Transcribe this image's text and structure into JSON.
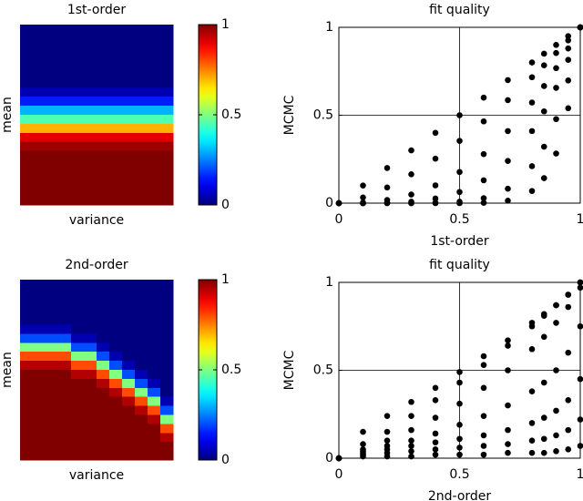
{
  "chart_data": [
    {
      "type": "heatmap",
      "title": "1st-order",
      "xlabel": "variance",
      "ylabel": "mean",
      "colormap": "jet",
      "values": [
        [
          0
        ],
        [
          0
        ],
        [
          0
        ],
        [
          0
        ],
        [
          0
        ],
        [
          0
        ],
        [
          0
        ],
        [
          0.05
        ],
        [
          0.15
        ],
        [
          0.3
        ],
        [
          0.45
        ],
        [
          0.7
        ],
        [
          0.9
        ],
        [
          0.97
        ],
        [
          1
        ],
        [
          1
        ],
        [
          1
        ],
        [
          1
        ],
        [
          1
        ],
        [
          1
        ]
      ],
      "colorbar": {
        "clim": [
          0,
          1
        ],
        "ticks": [
          0,
          0.5,
          1
        ]
      }
    },
    {
      "type": "scatter",
      "title": "fit quality",
      "xlabel": "1st-order",
      "ylabel": "MCMC",
      "xlim": [
        0,
        1
      ],
      "ylim": [
        0,
        1
      ],
      "xticks": [
        0,
        0.5,
        1
      ],
      "yticks": [
        0,
        0.5,
        1
      ],
      "grid": true,
      "series": [
        {
          "color": "#000000",
          "x": [
            0,
            0.1,
            0.2,
            0.3,
            0.4,
            0.5,
            0.6,
            0.7,
            0.8,
            0.85,
            0.9,
            0.95,
            1,
            0,
            0.1,
            0.2,
            0.3,
            0.4,
            0.5,
            0.6,
            0.7,
            0.8,
            0.85,
            0.9,
            0.95,
            1,
            0,
            0.1,
            0.2,
            0.3,
            0.4,
            0.5,
            0.6,
            0.7,
            0.8,
            0.85,
            0.9,
            0.95,
            1,
            0,
            0.1,
            0.2,
            0.3,
            0.4,
            0.5,
            0.6,
            0.7,
            0.8,
            0.85,
            0.9,
            0.95,
            1,
            0,
            0.1,
            0.2,
            0.3,
            0.4,
            0.5,
            0.6,
            0.7,
            0.8,
            0.85,
            0.9,
            0.95,
            1,
            0,
            0.1,
            0.2,
            0.3,
            0.4,
            0.5,
            0.6,
            0.7,
            0.8,
            0.85,
            0.9,
            0.95,
            1
          ],
          "y": [
            0,
            0.1,
            0.2,
            0.3,
            0.4,
            0.5,
            0.6,
            0.7,
            0.8,
            0.85,
            0.9,
            0.95,
            1,
            0,
            0.032,
            0.089,
            0.164,
            0.253,
            0.354,
            0.465,
            0.586,
            0.716,
            0.784,
            0.854,
            0.926,
            1,
            0,
            0.003,
            0.018,
            0.049,
            0.101,
            0.177,
            0.279,
            0.41,
            0.572,
            0.666,
            0.768,
            0.88,
            1,
            0,
            0,
            0.002,
            0.008,
            0.026,
            0.063,
            0.13,
            0.24,
            0.41,
            0.522,
            0.656,
            0.815,
            1,
            0,
            0,
            0,
            0,
            0.002,
            0.008,
            0.028,
            0.082,
            0.21,
            0.321,
            0.478,
            0.698,
            1,
            0,
            0,
            0,
            0,
            0,
            0,
            0.002,
            0.014,
            0.069,
            0.142,
            0.282,
            0.54,
            1
          ]
        }
      ]
    },
    {
      "type": "heatmap",
      "title": "2nd-order",
      "xlabel": "variance",
      "ylabel": "mean",
      "colormap": "jet",
      "values": [
        [
          0,
          0,
          0,
          0,
          0,
          0,
          0,
          0,
          0,
          0,
          0,
          0
        ],
        [
          0,
          0,
          0,
          0,
          0,
          0,
          0,
          0,
          0,
          0,
          0,
          0
        ],
        [
          0,
          0,
          0,
          0,
          0,
          0,
          0,
          0,
          0,
          0,
          0,
          0
        ],
        [
          0,
          0,
          0,
          0,
          0,
          0,
          0,
          0,
          0,
          0,
          0,
          0
        ],
        [
          0,
          0,
          0,
          0,
          0,
          0,
          0,
          0,
          0,
          0,
          0,
          0
        ],
        [
          0.05,
          0.05,
          0.05,
          0.05,
          0,
          0,
          0,
          0,
          0,
          0,
          0,
          0
        ],
        [
          0.2,
          0.2,
          0.2,
          0.2,
          0.05,
          0.05,
          0,
          0,
          0,
          0,
          0,
          0
        ],
        [
          0.5,
          0.5,
          0.5,
          0.5,
          0.2,
          0.2,
          0.05,
          0,
          0,
          0,
          0,
          0
        ],
        [
          0.8,
          0.8,
          0.8,
          0.8,
          0.5,
          0.5,
          0.2,
          0.05,
          0,
          0,
          0,
          0
        ],
        [
          0.95,
          0.95,
          0.95,
          0.95,
          0.8,
          0.8,
          0.5,
          0.2,
          0.05,
          0,
          0,
          0
        ],
        [
          1,
          1,
          1,
          1,
          0.95,
          0.95,
          0.8,
          0.5,
          0.2,
          0.05,
          0,
          0
        ],
        [
          1,
          1,
          1,
          1,
          1,
          1,
          0.95,
          0.8,
          0.5,
          0.2,
          0.05,
          0
        ],
        [
          1,
          1,
          1,
          1,
          1,
          1,
          1,
          0.95,
          0.8,
          0.5,
          0.2,
          0
        ],
        [
          1,
          1,
          1,
          1,
          1,
          1,
          1,
          1,
          0.95,
          0.8,
          0.5,
          0.05
        ],
        [
          1,
          1,
          1,
          1,
          1,
          1,
          1,
          1,
          1,
          0.95,
          0.8,
          0.2
        ],
        [
          1,
          1,
          1,
          1,
          1,
          1,
          1,
          1,
          1,
          1,
          0.95,
          0.5
        ],
        [
          1,
          1,
          1,
          1,
          1,
          1,
          1,
          1,
          1,
          1,
          1,
          0.8
        ],
        [
          1,
          1,
          1,
          1,
          1,
          1,
          1,
          1,
          1,
          1,
          1,
          0.95
        ],
        [
          1,
          1,
          1,
          1,
          1,
          1,
          1,
          1,
          1,
          1,
          1,
          1
        ],
        [
          1,
          1,
          1,
          1,
          1,
          1,
          1,
          1,
          1,
          1,
          1,
          1
        ]
      ],
      "colorbar": {
        "clim": [
          0,
          1
        ],
        "ticks": [
          0,
          0.5,
          1
        ]
      }
    },
    {
      "type": "scatter",
      "title": "fit quality",
      "xlabel": "2nd-order",
      "ylabel": "MCMC",
      "xlim": [
        0,
        1
      ],
      "ylim": [
        0,
        1
      ],
      "xticks": [
        0,
        0.5,
        1
      ],
      "yticks": [
        0,
        0.5,
        1
      ],
      "grid": true,
      "series": [
        {
          "color": "#000000",
          "x": [
            0,
            0.1,
            0.2,
            0.3,
            0.4,
            0.5,
            0.6,
            0.7,
            0.8,
            0.85,
            0.9,
            0.95,
            1,
            0,
            0.1,
            0.2,
            0.3,
            0.4,
            0.5,
            0.6,
            0.7,
            0.8,
            0.85,
            0.9,
            0.95,
            1,
            0,
            0.1,
            0.2,
            0.3,
            0.4,
            0.5,
            0.6,
            0.7,
            0.8,
            0.85,
            0.9,
            0.95,
            1,
            0,
            0.1,
            0.2,
            0.3,
            0.4,
            0.5,
            0.6,
            0.7,
            0.8,
            0.85,
            0.9,
            0.95,
            1,
            0,
            0.1,
            0.2,
            0.3,
            0.4,
            0.5,
            0.6,
            0.7,
            0.8,
            0.85,
            0.9,
            0.95,
            1,
            0,
            0.1,
            0.2,
            0.3,
            0.4,
            0.5,
            0.6,
            0.7,
            0.8,
            0.85,
            0.9,
            0.95,
            1,
            0,
            0.1,
            0.2,
            0.3,
            0.4,
            0.5,
            0.6,
            0.7,
            0.8,
            0.85,
            0.9,
            0.95,
            1
          ],
          "y": [
            0,
            0.15,
            0.24,
            0.32,
            0.4,
            0.49,
            0.58,
            0.67,
            0.77,
            0.82,
            0.87,
            0.93,
            1,
            0,
            0.08,
            0.15,
            0.24,
            0.33,
            0.43,
            0.53,
            0.64,
            0.75,
            0.81,
            0.87,
            0.93,
            1,
            0,
            0.05,
            0.1,
            0.16,
            0.23,
            0.31,
            0.4,
            0.5,
            0.62,
            0.69,
            0.77,
            0.86,
            0.97,
            0,
            0.04,
            0.07,
            0.1,
            0.14,
            0.19,
            0.24,
            0.3,
            0.38,
            0.43,
            0.5,
            0.6,
            0.75,
            0,
            0.03,
            0.05,
            0.07,
            0.09,
            0.11,
            0.13,
            0.16,
            0.2,
            0.23,
            0.27,
            0.33,
            0.45,
            0,
            0.02,
            0.03,
            0.04,
            0.05,
            0.06,
            0.07,
            0.08,
            0.1,
            0.11,
            0.13,
            0.16,
            0.22,
            0,
            0.01,
            0.01,
            0.01,
            0.02,
            0.02,
            0.02,
            0.03,
            0.03,
            0.03,
            0.04,
            0.05,
            0.07
          ]
        }
      ]
    }
  ]
}
